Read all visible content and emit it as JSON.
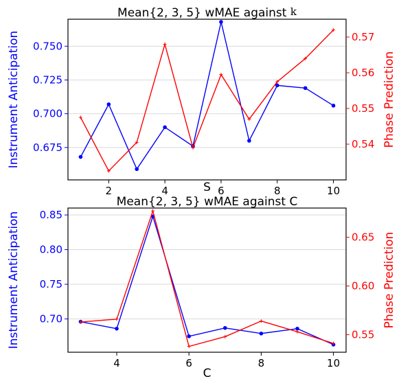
{
  "colors": {
    "left": "#0000ff",
    "right": "#ff0000",
    "grid": "#d9d9d9",
    "axis": "#000000"
  },
  "chart_data": [
    {
      "type": "line",
      "title": "Mean{2, 3, 5} wMAE against ",
      "title_symbol": "k",
      "xlabel": "S",
      "ylabel_left": "Instrument Anticipation",
      "ylabel_right": "Phase Prediction",
      "xlim": [
        0.55,
        10.45
      ],
      "xticks": [
        2,
        4,
        6,
        8,
        10
      ],
      "ylim_left": [
        0.651,
        0.77
      ],
      "yticks_left": [
        0.675,
        0.7,
        0.725,
        0.75
      ],
      "ytick_labels_left": [
        "0.675",
        "0.700",
        "0.725",
        "0.750"
      ],
      "ylim_right": [
        0.53,
        0.575
      ],
      "yticks_right": [
        0.54,
        0.55,
        0.56,
        0.57
      ],
      "ytick_labels_right": [
        "0.54",
        "0.55",
        "0.56",
        "0.57"
      ],
      "grid": true,
      "series": [
        {
          "axis": "left",
          "marker": "dot",
          "x": [
            1,
            2,
            3,
            4,
            5,
            6,
            7,
            8,
            9,
            10
          ],
          "values": [
            0.668,
            0.707,
            0.659,
            0.69,
            0.676,
            0.768,
            0.68,
            0.721,
            0.719,
            0.706
          ]
        },
        {
          "axis": "right",
          "marker": "plus",
          "x": [
            1,
            2,
            3,
            4,
            5,
            6,
            7,
            8,
            9,
            10
          ],
          "values": [
            0.5475,
            0.5325,
            0.5405,
            0.568,
            0.539,
            0.5595,
            0.547,
            0.5575,
            0.564,
            0.572
          ]
        }
      ]
    },
    {
      "type": "line",
      "title": "Mean{2, 3, 5} wMAE against C",
      "xlabel": "C",
      "ylabel_left": "Instrument Anticipation",
      "ylabel_right": "Phase Prediction",
      "xlim": [
        2.65,
        10.35
      ],
      "xticks": [
        4,
        6,
        8,
        10
      ],
      "ylim_left": [
        0.652,
        0.86
      ],
      "yticks_left": [
        0.7,
        0.75,
        0.8,
        0.85
      ],
      "ytick_labels_left": [
        "0.70",
        "0.75",
        "0.80",
        "0.85"
      ],
      "ylim_right": [
        0.532,
        0.68
      ],
      "yticks_right": [
        0.55,
        0.6,
        0.65
      ],
      "ytick_labels_right": [
        "0.55",
        "0.60",
        "0.65"
      ],
      "grid": true,
      "series": [
        {
          "axis": "left",
          "marker": "dot",
          "x": [
            3,
            4,
            5,
            6,
            7,
            8,
            9,
            10
          ],
          "values": [
            0.696,
            0.686,
            0.848,
            0.675,
            0.687,
            0.679,
            0.686,
            0.663
          ]
        },
        {
          "axis": "right",
          "marker": "plus",
          "x": [
            3,
            4,
            5,
            6,
            7,
            8,
            9,
            10
          ],
          "values": [
            0.563,
            0.566,
            0.677,
            0.538,
            0.548,
            0.564,
            0.553,
            0.541
          ]
        }
      ]
    }
  ]
}
